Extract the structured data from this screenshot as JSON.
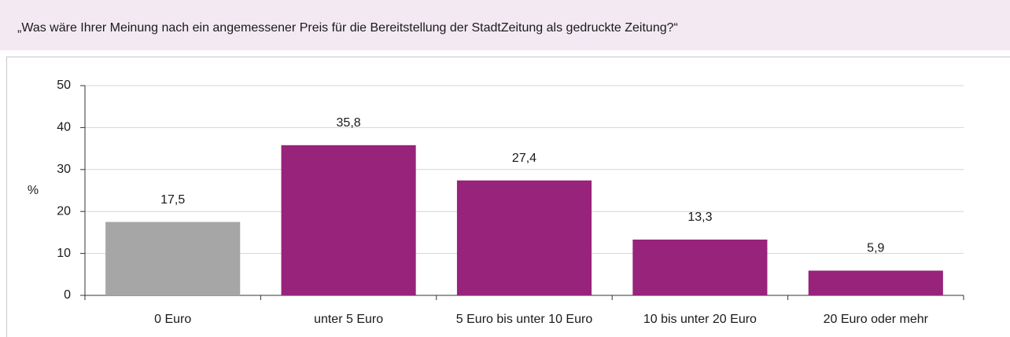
{
  "chart_data": {
    "type": "bar",
    "title": "„Was wäre Ihrer Meinung nach ein angemessener Preis für die Bereitstellung der StadtZeitung als gedruckte Zeitung?“",
    "y_label": "%",
    "categories": [
      "0 Euro",
      "unter 5 Euro",
      "5 Euro bis unter 10 Euro",
      "10 bis unter 20 Euro",
      "20 Euro oder mehr"
    ],
    "values": [
      17.5,
      35.8,
      27.4,
      13.3,
      5.9
    ],
    "value_labels": [
      "17,5",
      "35,8",
      "27,4",
      "13,3",
      "5,9"
    ],
    "colors": [
      "#a6a6a6",
      "#98237a",
      "#98237a",
      "#98237a",
      "#98237a"
    ],
    "ylim": [
      0,
      50
    ],
    "yticks": [
      0,
      10,
      20,
      30,
      40,
      50
    ],
    "grid": true
  }
}
